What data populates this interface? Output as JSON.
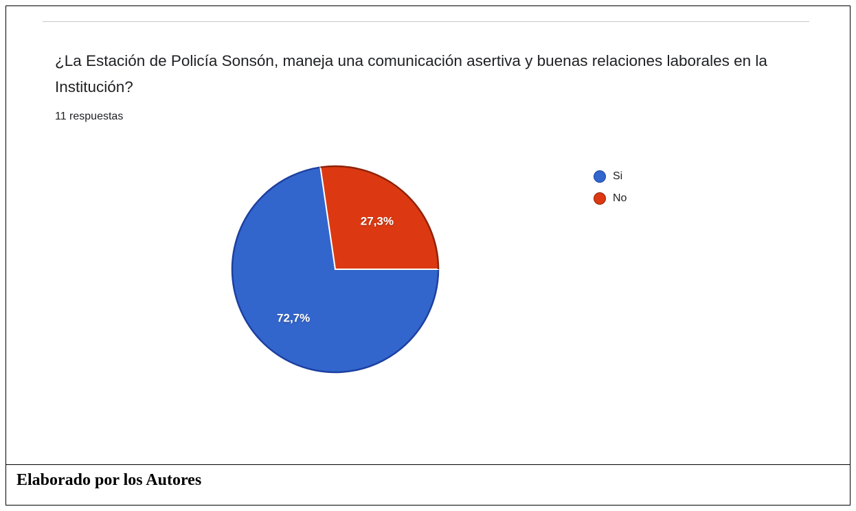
{
  "question": "¿La Estación de Policía Sonsón, maneja una comunicación asertiva y buenas relaciones laborales en la Institución?",
  "responses": "11 respuestas",
  "footer": "Elaborado por los Autores",
  "colors": {
    "si": "#3366cc",
    "no": "#dc3912",
    "si_edge": "#1c3fa0",
    "no_edge": "#8f2208"
  },
  "chart_data": {
    "type": "pie",
    "categories": [
      "Si",
      "No"
    ],
    "values": [
      72.7,
      27.3
    ],
    "labels": [
      "72,7%",
      "27,3%"
    ],
    "legend_position": "right"
  }
}
